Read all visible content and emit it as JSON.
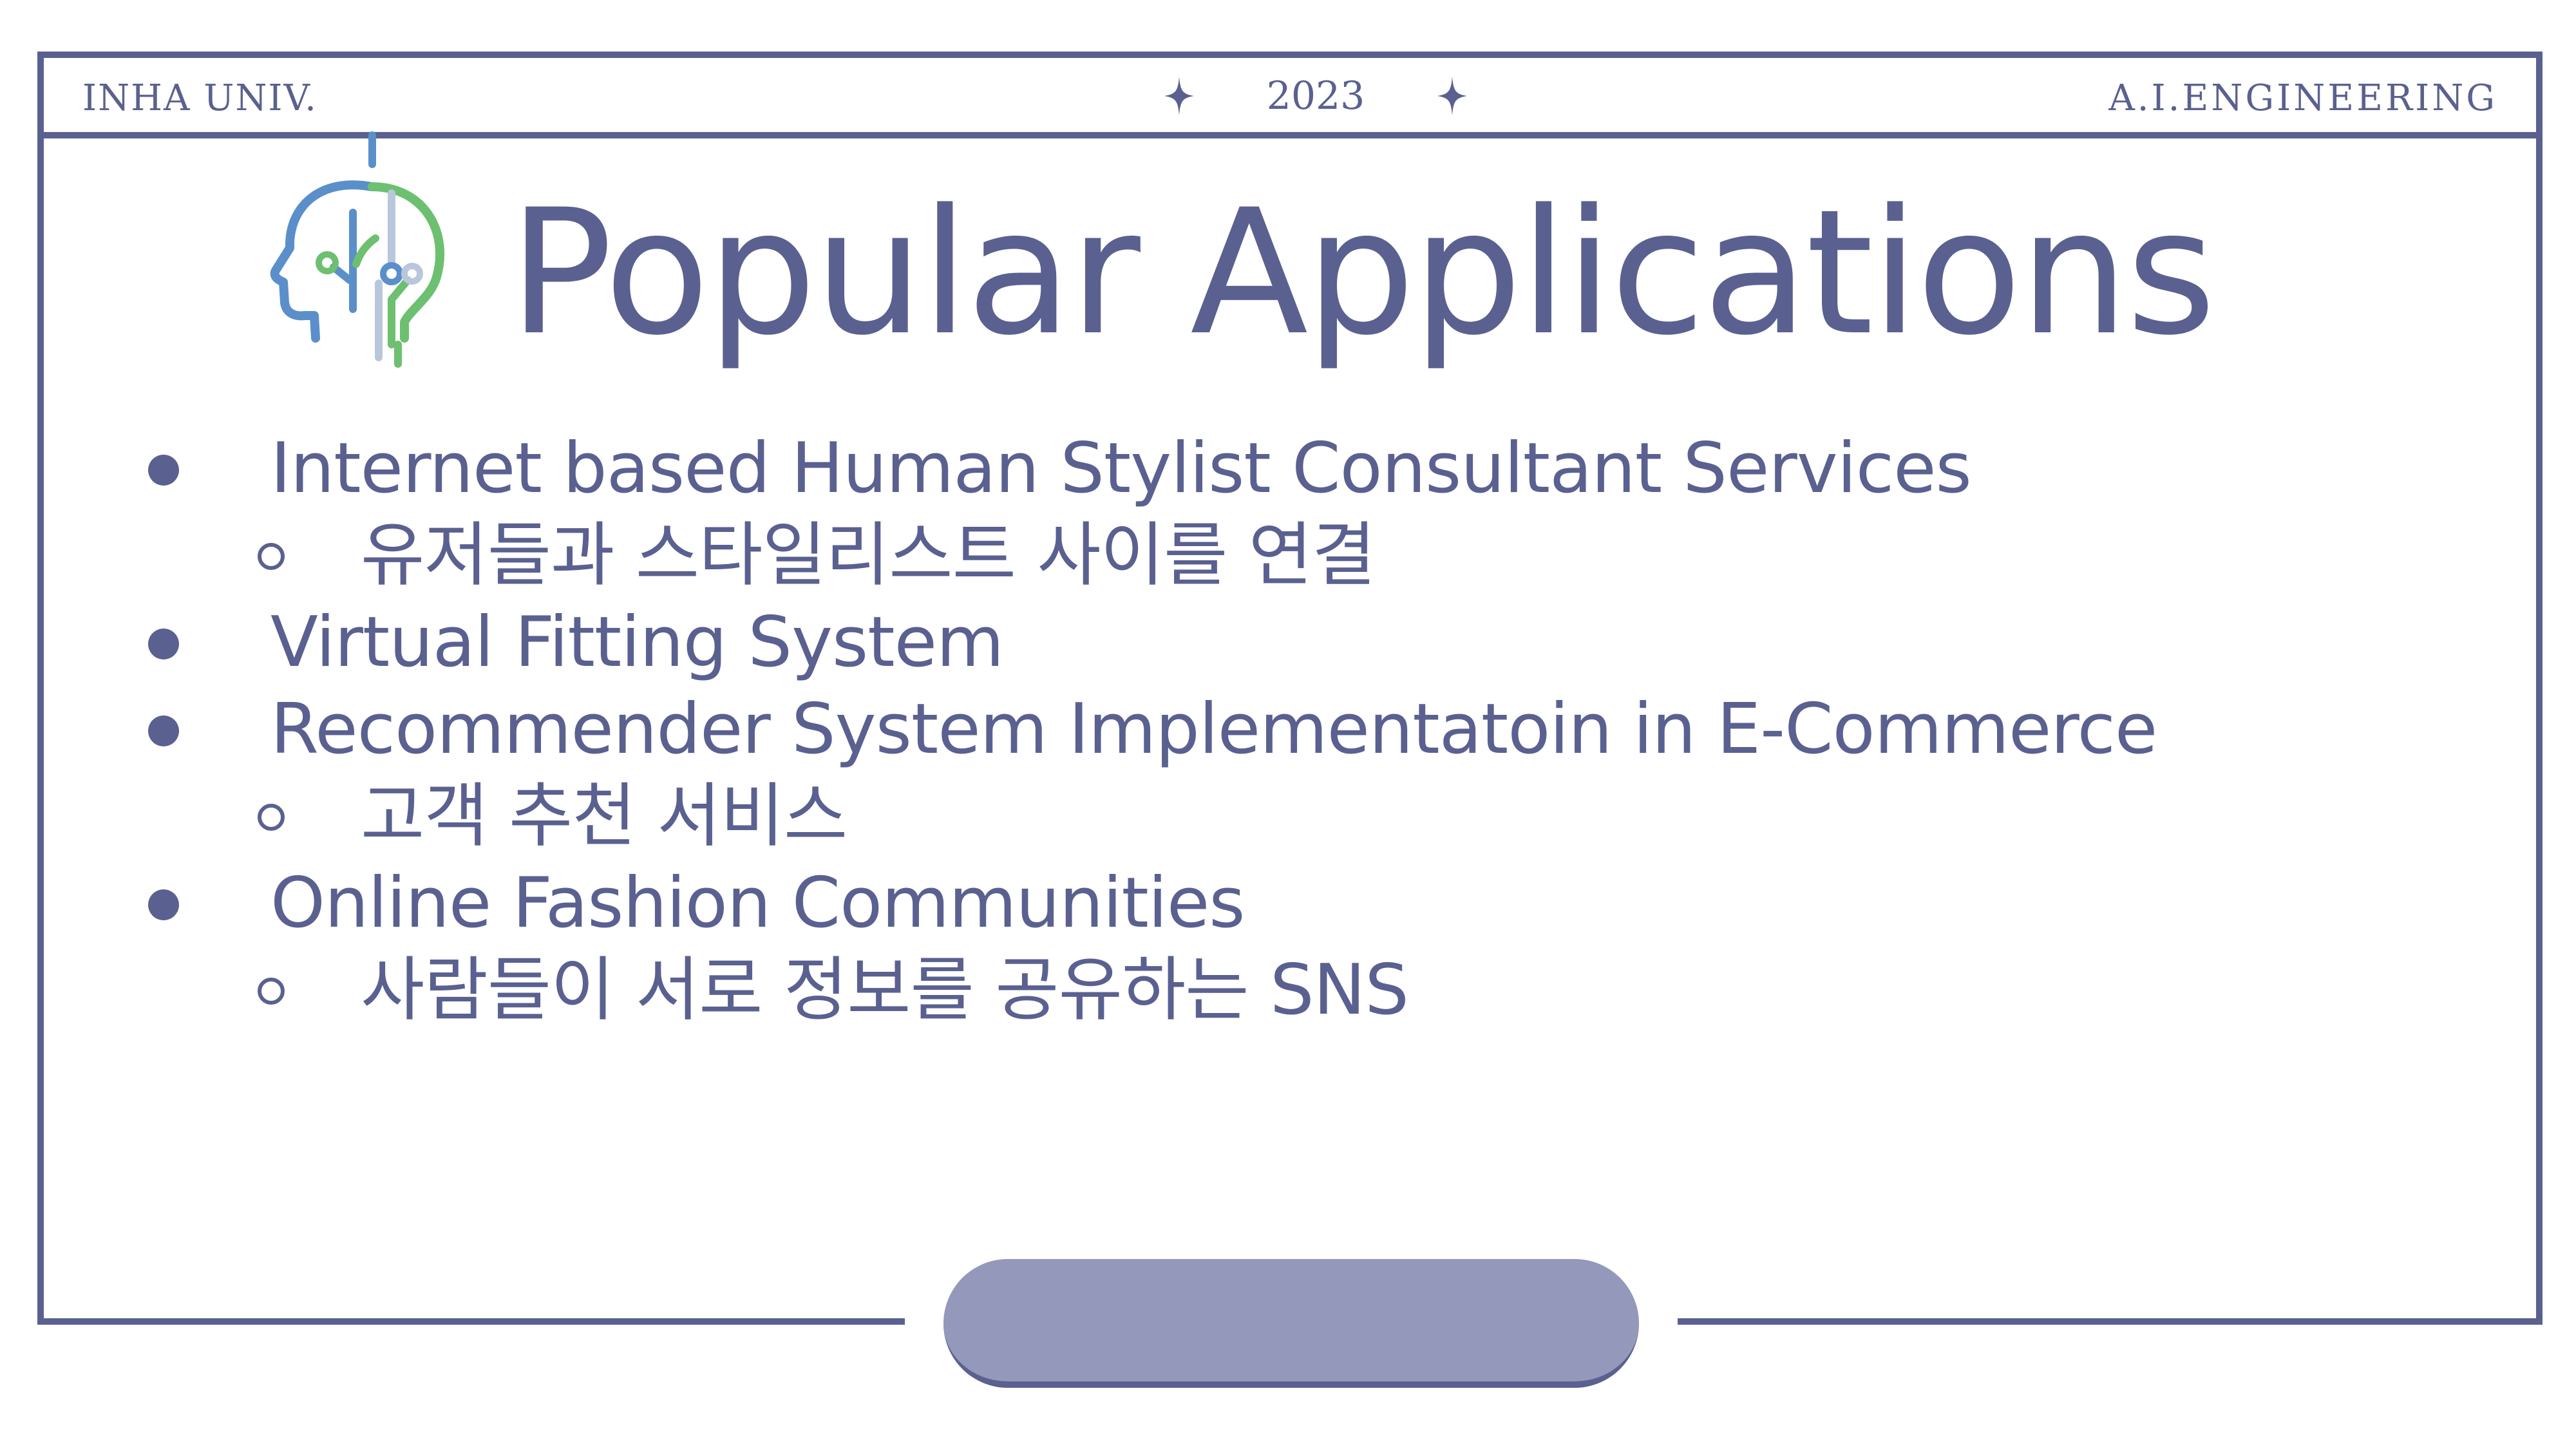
{
  "header": {
    "left_text": "INHA UNIV.",
    "year": "2023",
    "right_text": "A.I.ENGINEERING"
  },
  "slide": {
    "title": "Popular Applications",
    "bullets": [
      {
        "text": "Internet based Human Stylist Consultant Services",
        "sub": "유저들과 스타일리스트 사이를 연결"
      },
      {
        "text": "Virtual Fitting System"
      },
      {
        "text": "Recommender System Implementatoin in E-Commerce",
        "sub": "고객 추천 서비스"
      },
      {
        "text": "Online Fashion Communities",
        "sub": "사람들이 서로 정보를 공유하는 SNS"
      }
    ]
  },
  "icons": [
    "ai-head-icon",
    "star-icon"
  ],
  "colors": {
    "primary": "#5a6190",
    "pill": "#9498ba",
    "icon_blue": "#5b8fc9",
    "icon_green": "#6cc070",
    "icon_light": "#b9c7dc"
  }
}
